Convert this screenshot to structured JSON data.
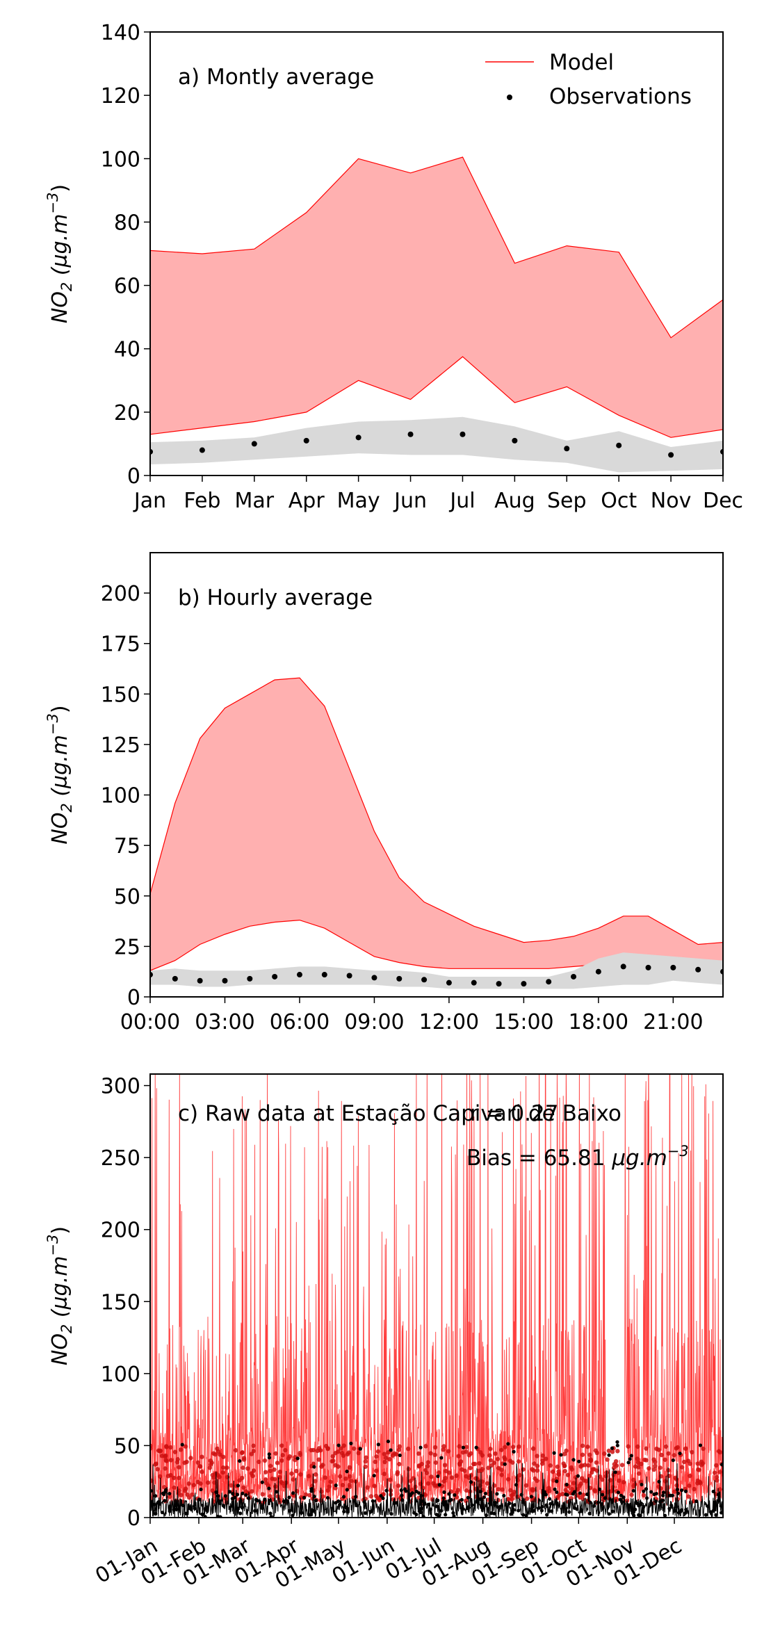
{
  "chart_data": [
    {
      "type": "area",
      "title": "a) Montly average",
      "ylabel": "NO2 (µg.m⁻³)",
      "ylabel_parts": {
        "base": "NO",
        "sub": "2",
        "units": " (µg.m",
        "sup": "−3",
        "close": ")"
      },
      "ylim": [
        0,
        140
      ],
      "yticks": [
        0,
        20,
        40,
        60,
        80,
        100,
        120,
        140
      ],
      "categories": [
        "Jan",
        "Feb",
        "Mar",
        "Apr",
        "May",
        "Jun",
        "Jul",
        "Aug",
        "Sep",
        "Oct",
        "Nov",
        "Dec"
      ],
      "legend": {
        "placement": "top-right",
        "entries": [
          {
            "label": "Model",
            "kind": "line"
          },
          {
            "label": "Observations",
            "kind": "dot"
          }
        ]
      },
      "series": [
        {
          "name": "Model",
          "role": "band",
          "color": "#ff0000",
          "fill": "#ffb0b0",
          "upper": [
            71,
            70,
            71.5,
            83,
            100,
            95.5,
            100.5,
            67,
            72.5,
            70.5,
            43.5,
            55.5
          ],
          "lower": [
            13,
            15,
            17,
            20,
            30,
            24,
            37.5,
            23,
            28,
            19,
            12,
            14.5
          ]
        },
        {
          "name": "Observations",
          "role": "band",
          "fill": "#d9d9d9",
          "upper": [
            10.5,
            11,
            12,
            15,
            17,
            17.5,
            18.5,
            15.5,
            11,
            14,
            9,
            11
          ],
          "lower": [
            3.5,
            4,
            5,
            6,
            7,
            6.5,
            6.5,
            5,
            4,
            1,
            1.5,
            2
          ]
        },
        {
          "name": "Observations",
          "role": "points",
          "color": "#000000",
          "values": [
            7.5,
            8,
            10,
            11,
            12,
            13,
            13,
            11,
            8.5,
            9.5,
            6.5,
            7.5
          ]
        }
      ]
    },
    {
      "type": "area",
      "title": "b) Hourly average",
      "ylabel": "NO2 (µg.m⁻³)",
      "ylim": [
        0,
        220
      ],
      "yticks": [
        0,
        25,
        50,
        75,
        100,
        125,
        150,
        175,
        200
      ],
      "xlim": [
        0,
        23
      ],
      "xticks": [
        0,
        3,
        6,
        9,
        12,
        15,
        18,
        21
      ],
      "xticklabels": [
        "00:00",
        "03:00",
        "06:00",
        "09:00",
        "12:00",
        "15:00",
        "18:00",
        "21:00"
      ],
      "x": [
        0,
        1,
        2,
        3,
        4,
        5,
        6,
        7,
        8,
        9,
        10,
        11,
        12,
        13,
        14,
        15,
        16,
        17,
        18,
        19,
        20,
        21,
        22,
        23
      ],
      "series": [
        {
          "name": "Model",
          "role": "band",
          "color": "#ff0000",
          "fill": "#ffb0b0",
          "upper": [
            51,
            96,
            128,
            143,
            150,
            157,
            158,
            144,
            113,
            82,
            59,
            47,
            41,
            35,
            31,
            27,
            28,
            30,
            34,
            40,
            40,
            33,
            26,
            27
          ],
          "lower": [
            13,
            18,
            26,
            31,
            35,
            37,
            38,
            34,
            27,
            20,
            17,
            15,
            14,
            14,
            14,
            14,
            14,
            15,
            16,
            17,
            17,
            16,
            15,
            14
          ]
        },
        {
          "name": "Observations",
          "role": "band",
          "fill": "#d9d9d9",
          "upper": [
            13,
            14,
            13,
            13,
            13,
            14,
            15,
            15,
            14,
            13,
            13,
            12,
            10,
            10,
            10,
            10,
            10,
            13,
            19,
            22,
            21,
            20,
            19,
            18
          ],
          "lower": [
            6,
            6,
            5,
            5,
            6,
            6,
            6,
            6,
            6,
            6,
            5,
            5,
            4,
            4,
            4,
            4,
            4,
            4,
            5,
            6,
            6,
            8,
            7,
            6
          ]
        },
        {
          "name": "Observations",
          "role": "points",
          "color": "#000000",
          "values": [
            11,
            9,
            8,
            8,
            9,
            10,
            11,
            11,
            10.5,
            9.5,
            9,
            8.5,
            7,
            7,
            6.5,
            6.5,
            7.5,
            10,
            12.5,
            15,
            14.5,
            14.5,
            13.5,
            12.5
          ]
        }
      ]
    },
    {
      "type": "line",
      "title": "c) Raw data at Estação Capivari de Baixo",
      "annotations": {
        "r": "r = 0.27",
        "bias_prefix": "Bias = 65.81 ",
        "bias_units": "µg.m",
        "bias_sup": "−3"
      },
      "ylabel": "NO2 (µg.m⁻³)",
      "ylim": [
        0,
        308
      ],
      "yticks": [
        0,
        50,
        100,
        150,
        200,
        250,
        300
      ],
      "xlim": [
        0,
        365
      ],
      "xticks": [
        0,
        31,
        59,
        90,
        120,
        151,
        181,
        212,
        243,
        273,
        304,
        334
      ],
      "xticklabels": [
        "01-Jan",
        "01-Feb",
        "01-Mar",
        "01-Apr",
        "01-May",
        "01-Jun",
        "01-Jul",
        "01-Aug",
        "01-Sep",
        "01-Oct",
        "01-Nov",
        "01-Dec"
      ],
      "series": [
        {
          "name": "Model",
          "role": "hourly-line",
          "color": "#ff2a2a",
          "typical_range": [
            5,
            120
          ],
          "peak_max": 308
        },
        {
          "name": "Observations",
          "role": "hourly-points",
          "color": "#000000",
          "typical_range": [
            0,
            20
          ],
          "peak_max": 55
        }
      ]
    }
  ]
}
